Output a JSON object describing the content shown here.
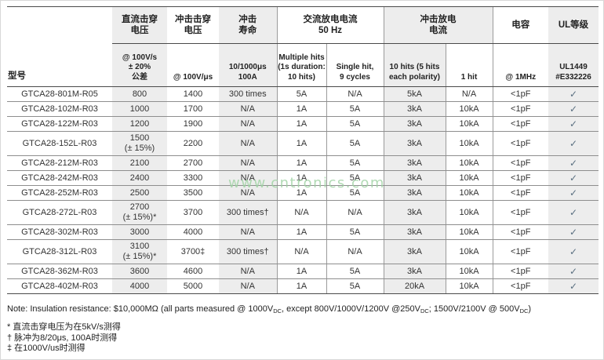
{
  "watermark": {
    "text": "www.cntronics.com"
  },
  "colors": {
    "shaded_column": "#ededed",
    "watermark_green": "#9ed2a2",
    "checkmark": "#5a6f80",
    "rule_dark": "#4a4a4a",
    "rule_light": "#8e8e8e"
  },
  "table": {
    "groups": {
      "model": "型号",
      "dc": "直流击穿\n电压",
      "impulse": "冲击击穿\n电压",
      "life": "冲击\n寿命",
      "ac": "交流放电电流\n50 Hz",
      "surge": "冲击放电\n电流",
      "cap": "电容",
      "ul": "UL等级"
    },
    "subheaders": {
      "dc": "@ 100V/s\n± 20%\n公差",
      "impulse": "@ 100V/μs",
      "life": "10/1000μs\n100A",
      "multi": "Multiple hits\n(1s duration:\n10 hits)",
      "single": "Single hit,\n9 cycles",
      "hits10": "10 hits (5 hits\neach polarity)",
      "hit1": "1 hit",
      "cap": "@ 1MHz",
      "ul": "UL1449\n#E332226"
    },
    "rows": [
      {
        "model": "GTCA28-801M-R05",
        "dc": "800",
        "imp": "1400",
        "life": "300 times",
        "multi": "5A",
        "single": "N/A",
        "hits10": "5kA",
        "hit1": "N/A",
        "cap": "<1pF",
        "ul": "✓"
      },
      {
        "model": "GTCA28-102M-R03",
        "dc": "1000",
        "imp": "1700",
        "life": "N/A",
        "multi": "1A",
        "single": "5A",
        "hits10": "3kA",
        "hit1": "10kA",
        "cap": "<1pF",
        "ul": "✓"
      },
      {
        "model": "GTCA28-122M-R03",
        "dc": "1200",
        "imp": "1900",
        "life": "N/A",
        "multi": "1A",
        "single": "5A",
        "hits10": "3kA",
        "hit1": "10kA",
        "cap": "<1pF",
        "ul": "✓"
      },
      {
        "model": "GTCA28-152L-R03",
        "dc": "1500\n(± 15%)",
        "imp": "2200",
        "life": "N/A",
        "multi": "1A",
        "single": "5A",
        "hits10": "3kA",
        "hit1": "10kA",
        "cap": "<1pF",
        "ul": "✓"
      },
      {
        "model": "GTCA28-212M-R03",
        "dc": "2100",
        "imp": "2700",
        "life": "N/A",
        "multi": "1A",
        "single": "5A",
        "hits10": "3kA",
        "hit1": "10kA",
        "cap": "<1pF",
        "ul": "✓"
      },
      {
        "model": "GTCA28-242M-R03",
        "dc": "2400",
        "imp": "3300",
        "life": "N/A",
        "multi": "1A",
        "single": "5A",
        "hits10": "3kA",
        "hit1": "10kA",
        "cap": "<1pF",
        "ul": "✓"
      },
      {
        "model": "GTCA28-252M-R03",
        "dc": "2500",
        "imp": "3500",
        "life": "N/A",
        "multi": "1A",
        "single": "5A",
        "hits10": "3kA",
        "hit1": "10kA",
        "cap": "<1pF",
        "ul": "✓"
      },
      {
        "model": "GTCA28-272L-R03",
        "dc": "2700\n(± 15%)*",
        "imp": "3700",
        "life": "300 times†",
        "multi": "N/A",
        "single": "N/A",
        "hits10": "3kA",
        "hit1": "10kA",
        "cap": "<1pF",
        "ul": "✓"
      },
      {
        "model": "GTCA28-302M-R03",
        "dc": "3000",
        "imp": "4000",
        "life": "N/A",
        "multi": "1A",
        "single": "5A",
        "hits10": "3kA",
        "hit1": "10kA",
        "cap": "<1pF",
        "ul": "✓"
      },
      {
        "model": "GTCA28-312L-R03",
        "dc": "3100\n(± 15%)*",
        "imp": "3700‡",
        "life": "300 times†",
        "multi": "N/A",
        "single": "N/A",
        "hits10": "3kA",
        "hit1": "10kA",
        "cap": "<1pF",
        "ul": "✓"
      },
      {
        "model": "GTCA28-362M-R03",
        "dc": "3600",
        "imp": "4600",
        "life": "N/A",
        "multi": "1A",
        "single": "5A",
        "hits10": "3kA",
        "hit1": "10kA",
        "cap": "<1pF",
        "ul": "✓"
      },
      {
        "model": "GTCA28-402M-R03",
        "dc": "4000",
        "imp": "5000",
        "life": "N/A",
        "multi": "1A",
        "single": "5A",
        "hits10": "20kA",
        "hit1": "10kA",
        "cap": "<1pF",
        "ul": "✓"
      }
    ]
  },
  "note": {
    "p1": "Note: Insulation resistance: $10,000MΩ (all parts measured @ 1000V",
    "sub1": "DC",
    "p2": ", except 800V/1000V/1200V @250V",
    "sub2": "DC",
    "p3": "; 1500V/2100V @ 500V",
    "sub3": "DC",
    "p4": ")"
  },
  "footnotes": [
    "* 直流击穿电压为在5kV/s测得",
    "† 脉冲为8/20μs, 100A时测得",
    "‡ 在1000V/us时测得"
  ]
}
